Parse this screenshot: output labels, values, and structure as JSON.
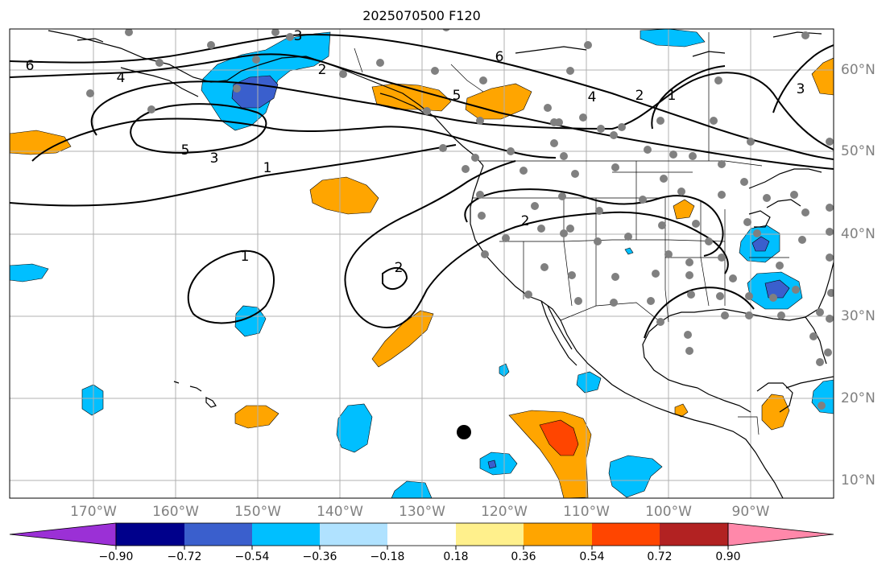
{
  "title": "2025070500 F120",
  "map": {
    "lon_labels": [
      "170°W",
      "160°W",
      "150°W",
      "140°W",
      "130°W",
      "120°W",
      "110°W",
      "100°W",
      "90°W"
    ],
    "lat_labels": [
      "60°N",
      "50°N",
      "40°N",
      "30°N",
      "20°N",
      "10°N"
    ],
    "contour_labels": [
      "6",
      "4",
      "3",
      "5",
      "3",
      "1",
      "1",
      "2",
      "6",
      "5",
      "4",
      "2",
      "1",
      "2",
      "3",
      "2"
    ],
    "colors": {
      "land_outline": "#000000",
      "gridline": "#b0b0b0",
      "station_dot": "#808080",
      "marker": "#000000"
    }
  },
  "colorbar": {
    "tick_labels": [
      "−0.90",
      "−0.72",
      "−0.54",
      "−0.36",
      "−0.18",
      "0.18",
      "0.36",
      "0.54",
      "0.72",
      "0.90"
    ],
    "colors": [
      "#9b30d6",
      "#00008b",
      "#3a5fcd",
      "#00bfff",
      "#b0e2ff",
      "#ffffff",
      "#fff08c",
      "#ffa500",
      "#ff4500",
      "#b22222",
      "#ff88aa"
    ]
  }
}
